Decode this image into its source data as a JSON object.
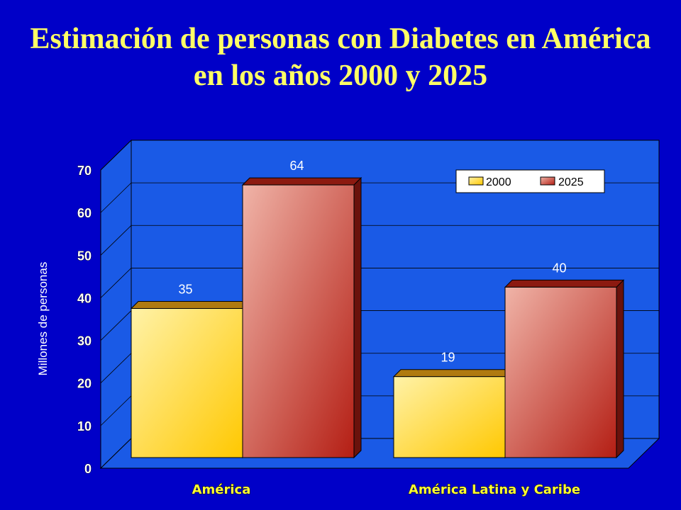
{
  "slide": {
    "title_line1": "Estimación de personas con Diabetes en América",
    "title_line2": "en los años 2000 y 2025"
  },
  "chart_data": {
    "type": "bar",
    "title": "Estimación de personas con Diabetes en América en los años 2000 y 2025",
    "xlabel": "",
    "ylabel": "Millones de personas",
    "categories": [
      "América",
      "América Latina y Caribe"
    ],
    "series": [
      {
        "name": "2000",
        "values": [
          35,
          19
        ],
        "color": "#ffd21e"
      },
      {
        "name": "2025",
        "values": [
          64,
          40
        ],
        "color": "#c8281e"
      }
    ],
    "yticks": [
      "0",
      "10",
      "20",
      "30",
      "40",
      "50",
      "60",
      "70"
    ],
    "ylim": [
      0,
      70
    ],
    "grid": true,
    "legend": "top-right",
    "data_labels": [
      "35",
      "64",
      "19",
      "40"
    ],
    "three_d": true,
    "colors": {
      "background": "#0000c8",
      "plot_area": "#1a5ae6",
      "title": "#ffff66",
      "category_labels": "#ffff33"
    }
  }
}
